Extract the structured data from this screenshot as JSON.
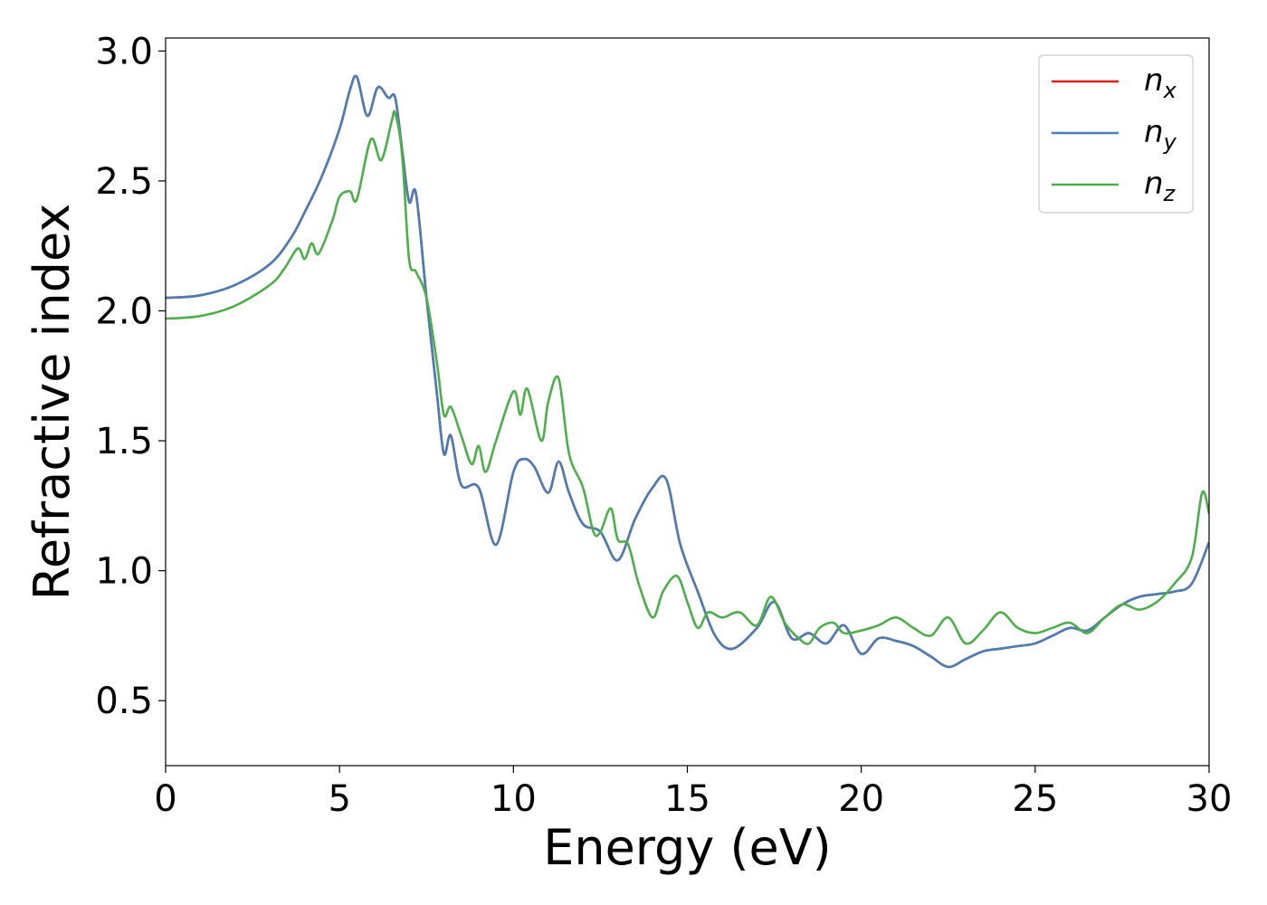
{
  "chart_data": {
    "type": "line",
    "title": "",
    "xlabel": "Energy (eV)",
    "ylabel": "Refractive index",
    "xlim": [
      0,
      30
    ],
    "ylim": [
      0.25,
      3.05
    ],
    "xticks": [
      0,
      5,
      10,
      15,
      20,
      25,
      30
    ],
    "yticks": [
      0.5,
      1.0,
      1.5,
      2.0,
      2.5,
      3.0
    ],
    "xtick_labels": [
      "0",
      "5",
      "10",
      "15",
      "20",
      "25",
      "30"
    ],
    "ytick_labels": [
      "0.5",
      "1.0",
      "1.5",
      "2.0",
      "2.5",
      "3.0"
    ],
    "grid": false,
    "legend_position": "top-right",
    "series": [
      {
        "name": "n_x",
        "legend_base": "n",
        "legend_sub": "x",
        "color": "#e41a1c",
        "x": [
          0,
          1,
          2,
          3,
          3.6,
          4,
          4.5,
          5,
          5.3,
          5.5,
          5.8,
          6.1,
          6.4,
          6.6,
          6.8,
          7.0,
          7.2,
          7.5,
          7.8,
          8.0,
          8.2,
          8.5,
          9.0,
          9.5,
          10.0,
          10.3,
          10.6,
          11.0,
          11.3,
          11.6,
          12.0,
          12.5,
          13.0,
          13.5,
          14.0,
          14.4,
          14.8,
          15.3,
          15.8,
          16.3,
          17.0,
          17.5,
          18.0,
          18.5,
          19.0,
          19.5,
          20.0,
          20.5,
          21.0,
          21.5,
          22.0,
          22.5,
          23.0,
          23.5,
          24.0,
          24.5,
          25.0,
          25.5,
          26.0,
          26.5,
          27.0,
          27.5,
          28.0,
          28.5,
          29.0,
          29.5,
          30.0
        ],
        "values": [
          2.05,
          2.06,
          2.1,
          2.18,
          2.28,
          2.38,
          2.52,
          2.7,
          2.85,
          2.9,
          2.75,
          2.86,
          2.82,
          2.82,
          2.62,
          2.42,
          2.45,
          2.05,
          1.68,
          1.45,
          1.52,
          1.33,
          1.32,
          1.1,
          1.38,
          1.43,
          1.4,
          1.3,
          1.42,
          1.3,
          1.18,
          1.15,
          1.04,
          1.2,
          1.32,
          1.35,
          1.1,
          0.92,
          0.75,
          0.7,
          0.78,
          0.88,
          0.74,
          0.76,
          0.72,
          0.79,
          0.68,
          0.74,
          0.73,
          0.71,
          0.67,
          0.63,
          0.66,
          0.69,
          0.7,
          0.71,
          0.72,
          0.75,
          0.78,
          0.77,
          0.82,
          0.87,
          0.9,
          0.91,
          0.92,
          0.95,
          1.11
        ]
      },
      {
        "name": "n_y",
        "legend_base": "n",
        "legend_sub": "y",
        "color": "#4a7eb4",
        "x": [
          0,
          1,
          2,
          3,
          3.6,
          4,
          4.5,
          5,
          5.3,
          5.5,
          5.8,
          6.1,
          6.4,
          6.6,
          6.8,
          7.0,
          7.2,
          7.5,
          7.8,
          8.0,
          8.2,
          8.5,
          9.0,
          9.5,
          10.0,
          10.3,
          10.6,
          11.0,
          11.3,
          11.6,
          12.0,
          12.5,
          13.0,
          13.5,
          14.0,
          14.4,
          14.8,
          15.3,
          15.8,
          16.3,
          17.0,
          17.5,
          18.0,
          18.5,
          19.0,
          19.5,
          20.0,
          20.5,
          21.0,
          21.5,
          22.0,
          22.5,
          23.0,
          23.5,
          24.0,
          24.5,
          25.0,
          25.5,
          26.0,
          26.5,
          27.0,
          27.5,
          28.0,
          28.5,
          29.0,
          29.5,
          30.0
        ],
        "values": [
          2.05,
          2.06,
          2.1,
          2.18,
          2.28,
          2.38,
          2.52,
          2.7,
          2.85,
          2.9,
          2.75,
          2.86,
          2.82,
          2.82,
          2.62,
          2.42,
          2.45,
          2.05,
          1.68,
          1.45,
          1.52,
          1.33,
          1.32,
          1.1,
          1.38,
          1.43,
          1.4,
          1.3,
          1.42,
          1.3,
          1.18,
          1.15,
          1.04,
          1.2,
          1.32,
          1.35,
          1.1,
          0.92,
          0.75,
          0.7,
          0.78,
          0.88,
          0.74,
          0.76,
          0.72,
          0.79,
          0.68,
          0.74,
          0.73,
          0.71,
          0.67,
          0.63,
          0.66,
          0.69,
          0.7,
          0.71,
          0.72,
          0.75,
          0.78,
          0.77,
          0.82,
          0.87,
          0.9,
          0.91,
          0.92,
          0.95,
          1.11
        ]
      },
      {
        "name": "n_z",
        "legend_base": "n",
        "legend_sub": "z",
        "color": "#4daf4a",
        "x": [
          0,
          1,
          2,
          3,
          3.4,
          3.8,
          4.0,
          4.2,
          4.4,
          4.8,
          5.0,
          5.3,
          5.5,
          5.9,
          6.2,
          6.5,
          6.6,
          6.8,
          7.0,
          7.2,
          7.5,
          7.8,
          8.0,
          8.2,
          8.5,
          8.8,
          9.0,
          9.2,
          9.5,
          10.0,
          10.2,
          10.4,
          10.8,
          11.0,
          11.3,
          11.6,
          12.0,
          12.3,
          12.5,
          12.8,
          13.0,
          13.3,
          13.6,
          14.0,
          14.3,
          14.7,
          15.0,
          15.3,
          15.6,
          16.0,
          16.5,
          17.0,
          17.4,
          17.8,
          18.2,
          18.5,
          18.8,
          19.2,
          19.5,
          20.0,
          20.5,
          21.0,
          21.5,
          22.0,
          22.5,
          23.0,
          23.5,
          24.0,
          24.5,
          25.0,
          25.5,
          26.0,
          26.5,
          27.0,
          27.5,
          28.0,
          28.5,
          29.0,
          29.5,
          29.8,
          30.0
        ],
        "values": [
          1.97,
          1.98,
          2.02,
          2.1,
          2.16,
          2.24,
          2.2,
          2.26,
          2.22,
          2.35,
          2.44,
          2.46,
          2.43,
          2.66,
          2.58,
          2.73,
          2.76,
          2.6,
          2.2,
          2.15,
          2.05,
          1.8,
          1.6,
          1.63,
          1.52,
          1.41,
          1.48,
          1.38,
          1.5,
          1.69,
          1.6,
          1.7,
          1.5,
          1.65,
          1.74,
          1.45,
          1.32,
          1.15,
          1.15,
          1.24,
          1.12,
          1.1,
          0.95,
          0.82,
          0.92,
          0.98,
          0.88,
          0.78,
          0.84,
          0.82,
          0.84,
          0.79,
          0.9,
          0.8,
          0.74,
          0.72,
          0.78,
          0.8,
          0.76,
          0.77,
          0.79,
          0.82,
          0.78,
          0.75,
          0.82,
          0.72,
          0.77,
          0.84,
          0.78,
          0.76,
          0.78,
          0.8,
          0.76,
          0.82,
          0.87,
          0.85,
          0.88,
          0.95,
          1.05,
          1.3,
          1.22
        ]
      }
    ]
  }
}
